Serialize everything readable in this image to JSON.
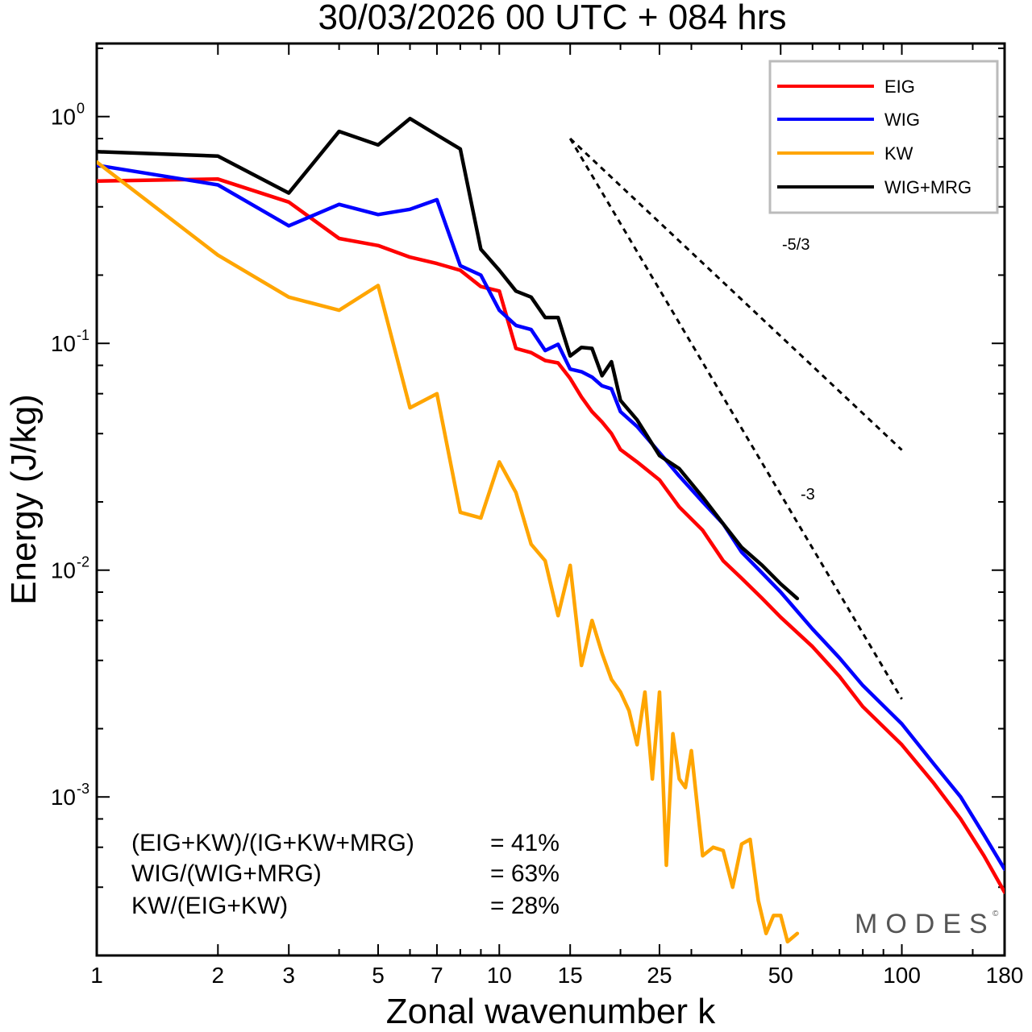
{
  "chart_data": {
    "type": "line",
    "title": "30/03/2026  00 UTC  + 084 hrs",
    "xlabel": "Zonal wavenumber k",
    "ylabel": "Energy (J/kg)",
    "xscale": "log",
    "yscale": "log",
    "xlim": [
      1,
      180
    ],
    "ylim": [
      0.0002,
      2.1
    ],
    "xticks": [
      1,
      2,
      3,
      5,
      7,
      10,
      15,
      25,
      50,
      100,
      180
    ],
    "yticks": [
      {
        "value": 1,
        "base": "10",
        "exp": "0"
      },
      {
        "value": 0.1,
        "base": "10",
        "exp": "-1"
      },
      {
        "value": 0.01,
        "base": "10",
        "exp": "-2"
      },
      {
        "value": 0.001,
        "base": "10",
        "exp": "-3"
      }
    ],
    "legend": {
      "position": "top-right"
    },
    "series": [
      {
        "name": "EIG",
        "color": "#ff0000",
        "x": [
          1,
          2,
          3,
          4,
          5,
          6,
          7,
          8,
          9,
          10,
          11,
          12,
          13,
          14,
          15,
          16,
          17,
          18,
          19,
          20,
          22,
          25,
          28,
          32,
          36,
          40,
          45,
          50,
          60,
          70,
          80,
          100,
          120,
          140,
          160,
          180
        ],
        "y": [
          0.52,
          0.53,
          0.42,
          0.29,
          0.27,
          0.24,
          0.225,
          0.21,
          0.178,
          0.17,
          0.095,
          0.091,
          0.084,
          0.082,
          0.07,
          0.058,
          0.05,
          0.045,
          0.04,
          0.034,
          0.03,
          0.025,
          0.019,
          0.015,
          0.011,
          0.0092,
          0.0075,
          0.0062,
          0.0046,
          0.0034,
          0.0025,
          0.0017,
          0.00115,
          0.0008,
          0.00055,
          0.00038
        ]
      },
      {
        "name": "WIG",
        "color": "#0000ff",
        "x": [
          1,
          2,
          3,
          4,
          5,
          6,
          7,
          8,
          9,
          10,
          11,
          12,
          13,
          14,
          15,
          16,
          17,
          18,
          19,
          20,
          22,
          25,
          28,
          32,
          36,
          40,
          45,
          50,
          60,
          70,
          80,
          100,
          120,
          140,
          160,
          180
        ],
        "y": [
          0.61,
          0.5,
          0.33,
          0.41,
          0.37,
          0.39,
          0.43,
          0.22,
          0.2,
          0.14,
          0.12,
          0.115,
          0.093,
          0.099,
          0.077,
          0.075,
          0.071,
          0.065,
          0.063,
          0.05,
          0.043,
          0.033,
          0.026,
          0.02,
          0.016,
          0.012,
          0.0097,
          0.008,
          0.0055,
          0.0041,
          0.0031,
          0.0021,
          0.0014,
          0.001,
          0.00068,
          0.00048
        ]
      },
      {
        "name": "KW",
        "color": "#ffa500",
        "x": [
          1,
          2,
          3,
          4,
          5,
          6,
          7,
          8,
          9,
          10,
          11,
          12,
          13,
          14,
          15,
          16,
          17,
          18,
          19,
          20,
          21,
          22,
          23,
          24,
          25,
          26,
          27,
          28,
          29,
          30,
          32,
          34,
          36,
          38,
          40,
          42,
          44,
          46,
          48,
          50,
          52,
          55
        ],
        "y": [
          0.63,
          0.245,
          0.16,
          0.14,
          0.18,
          0.052,
          0.06,
          0.018,
          0.017,
          0.03,
          0.022,
          0.013,
          0.011,
          0.0063,
          0.0105,
          0.0038,
          0.006,
          0.0043,
          0.0033,
          0.0029,
          0.0024,
          0.0017,
          0.0029,
          0.0012,
          0.0029,
          0.0005,
          0.0019,
          0.0012,
          0.0011,
          0.0016,
          0.00055,
          0.0006,
          0.00058,
          0.0004,
          0.00062,
          0.00065,
          0.00035,
          0.00025,
          0.0003,
          0.0003,
          0.00023,
          0.00025
        ]
      },
      {
        "name": "WIG+MRG",
        "color": "#000000",
        "x": [
          1,
          2,
          3,
          4,
          5,
          6,
          7,
          8,
          9,
          10,
          11,
          12,
          13,
          14,
          15,
          16,
          17,
          18,
          19,
          20,
          22,
          25,
          28,
          32,
          36,
          40,
          45,
          50,
          55
        ],
        "y": [
          0.7,
          0.67,
          0.46,
          0.86,
          0.75,
          0.98,
          0.83,
          0.72,
          0.26,
          0.21,
          0.17,
          0.16,
          0.13,
          0.13,
          0.088,
          0.096,
          0.095,
          0.072,
          0.083,
          0.056,
          0.046,
          0.032,
          0.028,
          0.021,
          0.016,
          0.0126,
          0.0105,
          0.0087,
          0.0075
        ]
      }
    ],
    "reference_lines": [
      {
        "label": "-5/3",
        "slope": -1.6667,
        "x": [
          15,
          100
        ],
        "y0": 0.8
      },
      {
        "label": "-3",
        "slope": -3,
        "x": [
          15,
          100
        ],
        "y0": 0.8
      }
    ],
    "annotations": [
      {
        "label": "(EIG+KW)/(IG+KW+MRG)",
        "value": "= 41%"
      },
      {
        "label": "WIG/(WIG+MRG)",
        "value": "= 63%"
      },
      {
        "label": "KW/(EIG+KW)",
        "value": "= 28%"
      }
    ],
    "watermark": "MODES",
    "watermark_mark": "©"
  }
}
